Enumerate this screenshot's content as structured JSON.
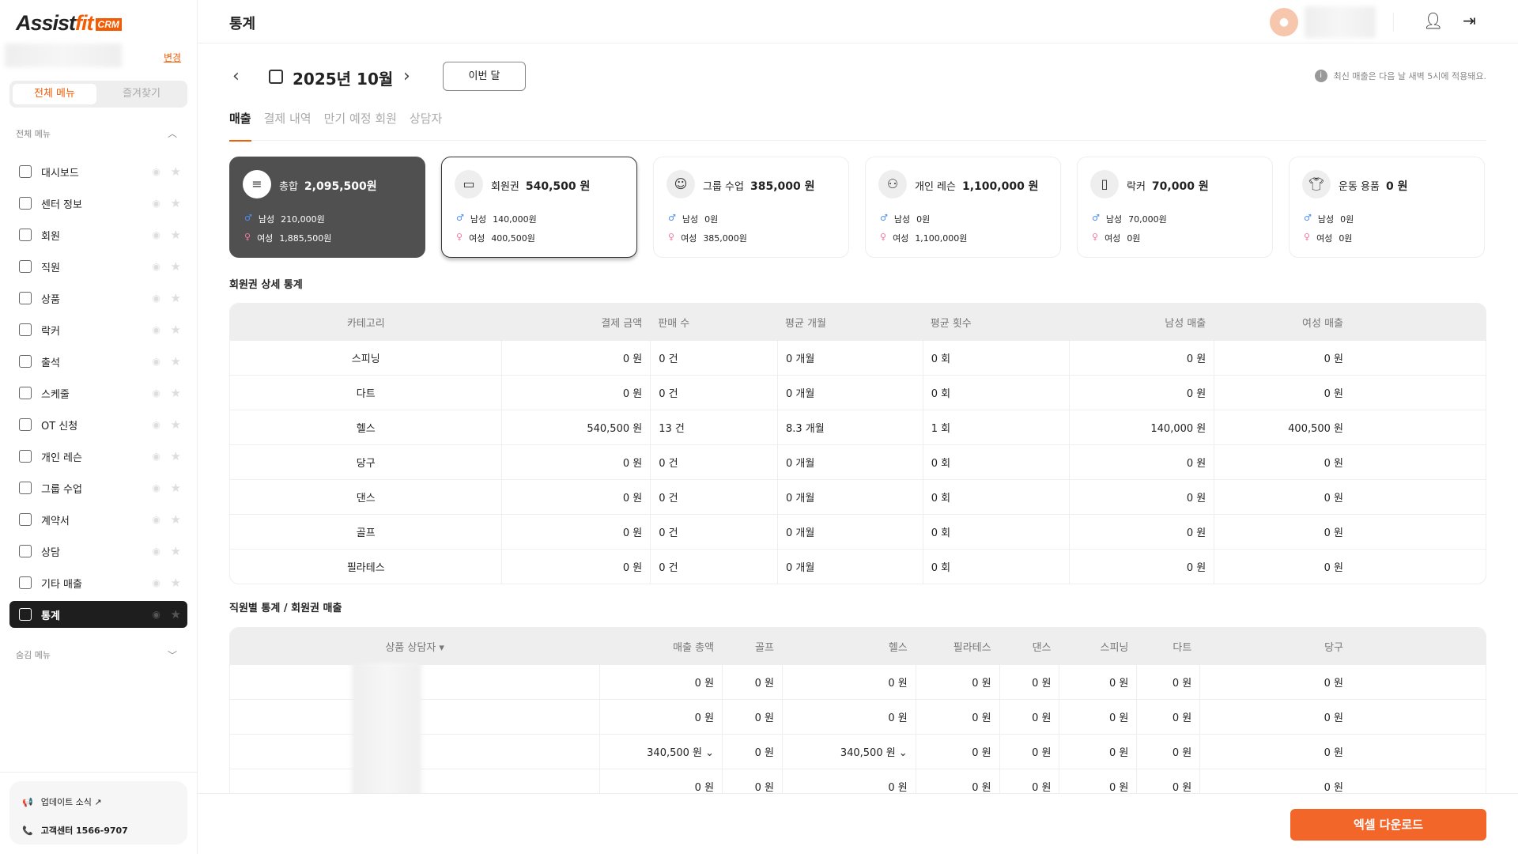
{
  "app": {
    "logo_text": "Assistfit CRM",
    "change_label": "변경",
    "seg": [
      "전체 메뉴",
      "즐겨찾기"
    ],
    "group_all": "전체 메뉴",
    "group_hidden": "숨김 메뉴",
    "menu": [
      {
        "label": "대시보드",
        "icon": "dashboard-icon"
      },
      {
        "label": "센터 정보",
        "icon": "building-icon"
      },
      {
        "label": "회원",
        "icon": "user-circle-icon"
      },
      {
        "label": "직원",
        "icon": "briefcase-icon"
      },
      {
        "label": "상품",
        "icon": "shop-icon"
      },
      {
        "label": "락커",
        "icon": "locker-icon"
      },
      {
        "label": "출석",
        "icon": "calendar-check-icon"
      },
      {
        "label": "스케줄",
        "icon": "calendar-icon"
      },
      {
        "label": "OT 신청",
        "icon": "ot-icon"
      },
      {
        "label": "개인 레슨",
        "icon": "people-icon"
      },
      {
        "label": "그룹 수업",
        "icon": "group-icon"
      },
      {
        "label": "계약서",
        "icon": "contract-icon"
      },
      {
        "label": "상담",
        "icon": "headset-icon"
      },
      {
        "label": "기타 매출",
        "icon": "card-icon"
      },
      {
        "label": "통계",
        "icon": "chart-icon",
        "active": true
      }
    ],
    "support": {
      "update": "업데이트 소식 ↗",
      "phone": "고객센터 1566-9707"
    }
  },
  "header": {
    "title": "통계"
  },
  "toolbar": {
    "month": "2025년 10월",
    "this_month": "이번 달",
    "notice": "최신 매출은 다음 날 새벽 5시에 적용돼요."
  },
  "tabs": [
    "매출",
    "결제 내역",
    "만기 예정 회원",
    "상담자"
  ],
  "cards": [
    {
      "title": "총합",
      "amount": "2,095,500원",
      "male": "210,000원",
      "female": "1,885,500원"
    },
    {
      "title": "회원권",
      "amount": "540,500 원",
      "male": "140,000원",
      "female": "400,500원"
    },
    {
      "title": "그룹 수업",
      "amount": "385,000 원",
      "male": "0원",
      "female": "385,000원"
    },
    {
      "title": "개인 레슨",
      "amount": "1,100,000 원",
      "male": "0원",
      "female": "1,100,000원"
    },
    {
      "title": "락커",
      "amount": "70,000 원",
      "male": "70,000원",
      "female": "0원"
    },
    {
      "title": "운동 용품",
      "amount": "0 원",
      "male": "0원",
      "female": "0원"
    }
  ],
  "gender": {
    "male": "남성",
    "female": "여성"
  },
  "table1": {
    "title": "회원권 상세 통계",
    "headers": [
      "카테고리",
      "결제 금액",
      "판매 수",
      "평균 개월",
      "평균 횟수",
      "남성 매출",
      "여성 매출"
    ],
    "rows": [
      [
        "스피닝",
        "0 원",
        "0 건",
        "0 개월",
        "0 회",
        "0 원",
        "0 원"
      ],
      [
        "다트",
        "0 원",
        "0 건",
        "0 개월",
        "0 회",
        "0 원",
        "0 원"
      ],
      [
        "헬스",
        "540,500 원",
        "13 건",
        "8.3 개월",
        "1 회",
        "140,000 원",
        "400,500 원"
      ],
      [
        "당구",
        "0 원",
        "0 건",
        "0 개월",
        "0 회",
        "0 원",
        "0 원"
      ],
      [
        "댄스",
        "0 원",
        "0 건",
        "0 개월",
        "0 회",
        "0 원",
        "0 원"
      ],
      [
        "골프",
        "0 원",
        "0 건",
        "0 개월",
        "0 회",
        "0 원",
        "0 원"
      ],
      [
        "필라테스",
        "0 원",
        "0 건",
        "0 개월",
        "0 회",
        "0 원",
        "0 원"
      ]
    ]
  },
  "table2": {
    "title": "직원별 통계 / 회원권 매출",
    "headers": [
      "상품 상담자 ▾",
      "매출 총액",
      "골프",
      "헬스",
      "필라테스",
      "댄스",
      "스피닝",
      "다트",
      "당구"
    ],
    "rows": [
      [
        "",
        "0 원",
        "0 원",
        "0 원",
        "0 원",
        "0 원",
        "0 원",
        "0 원",
        "0 원"
      ],
      [
        "",
        "0 원",
        "0 원",
        "0 원",
        "0 원",
        "0 원",
        "0 원",
        "0 원",
        "0 원"
      ],
      [
        "",
        "340,500 원 ⌄",
        "0 원",
        "340,500 원 ⌄",
        "0 원",
        "0 원",
        "0 원",
        "0 원",
        "0 원"
      ],
      [
        "",
        "0 원",
        "0 원",
        "0 원",
        "0 원",
        "0 원",
        "0 원",
        "0 원",
        "0 원"
      ]
    ]
  },
  "footer": {
    "excel": "엑셀 다운로드"
  },
  "colors": {
    "accent": "#f25c05",
    "male": "#4d8ef5",
    "female": "#f07aa0",
    "dark_card": "#505050"
  }
}
